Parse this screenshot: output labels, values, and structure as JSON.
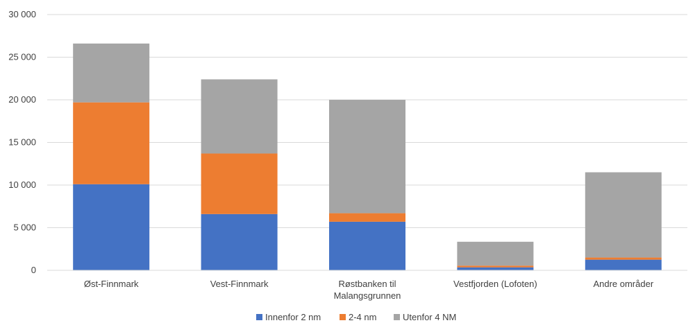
{
  "chart_data": {
    "type": "bar",
    "stacked": true,
    "categories": [
      [
        "Øst-Finnmark"
      ],
      [
        "Vest-Finnmark"
      ],
      [
        "Røstbanken til",
        "Malangsgrunnen"
      ],
      [
        "Vestfjorden (Lofoten)"
      ],
      [
        "Andre områder"
      ]
    ],
    "series": [
      {
        "name": "Innenfor 2 nm",
        "color": "#4472C4",
        "values": [
          10100,
          6600,
          5700,
          350,
          1250
        ]
      },
      {
        "name": "2-4 nm",
        "color": "#ED7D31",
        "values": [
          9600,
          7100,
          1000,
          200,
          250
        ]
      },
      {
        "name": "Utenfor 4 NM",
        "color": "#A5A5A5",
        "values": [
          6900,
          8700,
          13300,
          2800,
          10000
        ]
      }
    ],
    "ylim": [
      0,
      30000
    ],
    "yticks": [
      0,
      5000,
      10000,
      15000,
      20000,
      25000,
      30000
    ],
    "ytick_labels": [
      "0",
      "5 000",
      "10 000",
      "15 000",
      "20 000",
      "25 000",
      "30 000"
    ],
    "grid": true,
    "legend_position": "bottom",
    "title": "",
    "xlabel": "",
    "ylabel": ""
  }
}
